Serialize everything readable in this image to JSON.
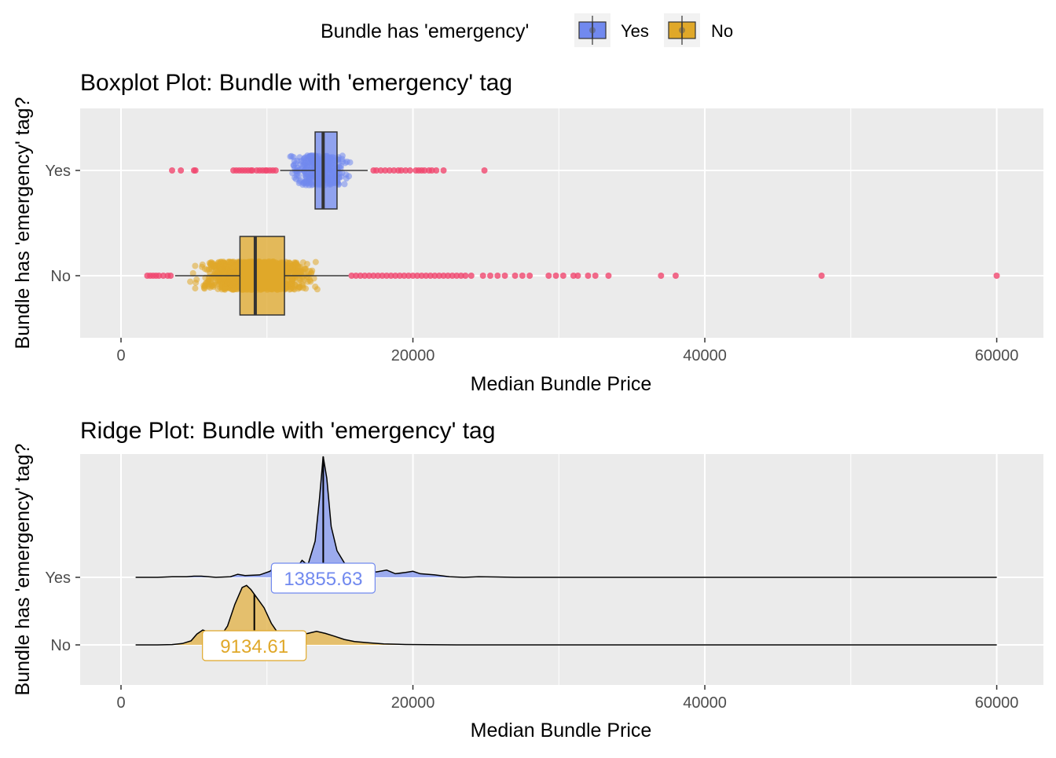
{
  "legend": {
    "title": "Bundle has 'emergency'",
    "items": [
      {
        "label": "Yes",
        "color": "#7189ef"
      },
      {
        "label": "No",
        "color": "#e0a829"
      }
    ]
  },
  "colors": {
    "panel_bg": "#ebebeb",
    "grid": "#ffffff",
    "yes_fill": "#7189ef",
    "no_fill": "#e0a829",
    "outlier": "#f0466e",
    "text_dark": "#000000",
    "tick_text": "#4d4d4d"
  },
  "chart_data": [
    {
      "type": "boxplot",
      "title": "Boxplot Plot: Bundle with 'emergency' tag",
      "xlabel": "Median Bundle Price",
      "ylabel": "Bundle has 'emergency' tag?",
      "xlim": [
        -2800,
        63200
      ],
      "xticks": [
        0,
        20000,
        40000,
        60000
      ],
      "xticklabels": [
        "0",
        "20000",
        "40000",
        "60000"
      ],
      "categories": [
        "Yes",
        "No"
      ],
      "grid": true,
      "series": [
        {
          "name": "Yes",
          "whisker_low": 10900,
          "q1": 13300,
          "median": 13850,
          "q3": 14800,
          "whisker_high": 16900,
          "jitter_range": [
            11200,
            16200
          ],
          "outliers": [
            3500,
            4100,
            5000,
            5100,
            7700,
            7900,
            8100,
            8300,
            8500,
            8700,
            8900,
            9000,
            9300,
            9500,
            9700,
            9900,
            10000,
            10200,
            10400,
            10600,
            17300,
            17500,
            17800,
            18100,
            18400,
            18700,
            19000,
            19200,
            19500,
            19800,
            20200,
            20400,
            20600,
            20800,
            21100,
            21300,
            21600,
            22100,
            24900
          ]
        },
        {
          "name": "No",
          "whisker_low": 3700,
          "q1": 8150,
          "median": 9200,
          "q3": 11200,
          "whisker_high": 15600,
          "jitter_range": [
            4500,
            14000
          ],
          "outliers": [
            1800,
            2000,
            2200,
            2400,
            2600,
            2900,
            3200,
            3400,
            15800,
            16100,
            16400,
            16700,
            17000,
            17300,
            17600,
            17900,
            18200,
            18500,
            18800,
            19100,
            19400,
            19700,
            20000,
            20300,
            20600,
            20900,
            21200,
            21500,
            21800,
            22100,
            22400,
            22700,
            23000,
            23300,
            23600,
            24000,
            24800,
            25300,
            25800,
            26300,
            27000,
            27500,
            28000,
            29300,
            29800,
            30300,
            31000,
            31300,
            32000,
            32500,
            33400,
            37000,
            38000,
            48000,
            60000
          ]
        }
      ]
    },
    {
      "type": "ridgeline",
      "title": "Ridge Plot: Bundle with 'emergency' tag",
      "xlabel": "Median Bundle Price",
      "ylabel": "Bundle has 'emergency' tag?",
      "xlim": [
        -2800,
        63200
      ],
      "xticks": [
        0,
        20000,
        40000,
        60000
      ],
      "xticklabels": [
        "0",
        "20000",
        "40000",
        "60000"
      ],
      "categories": [
        "Yes",
        "No"
      ],
      "grid": true,
      "range": [
        1000,
        60000
      ],
      "series": [
        {
          "name": "Yes",
          "median": 13855.63,
          "median_label": "13855.63",
          "density": [
            [
              1000,
              0
            ],
            [
              2500,
              0
            ],
            [
              3500,
              0.005
            ],
            [
              4500,
              0.005
            ],
            [
              5000,
              0.01
            ],
            [
              5500,
              0.01
            ],
            [
              6500,
              0
            ],
            [
              7500,
              0.005
            ],
            [
              8000,
              0.025
            ],
            [
              8500,
              0.015
            ],
            [
              9500,
              0.02
            ],
            [
              10200,
              0.05
            ],
            [
              10500,
              0.08
            ],
            [
              11000,
              0.04
            ],
            [
              11600,
              0.03
            ],
            [
              12000,
              0.07
            ],
            [
              12400,
              0.14
            ],
            [
              12800,
              0.1
            ],
            [
              13300,
              0.3
            ],
            [
              13600,
              0.65
            ],
            [
              13850,
              1.0
            ],
            [
              14100,
              0.82
            ],
            [
              14400,
              0.42
            ],
            [
              14800,
              0.22
            ],
            [
              15300,
              0.12
            ],
            [
              15800,
              0.06
            ],
            [
              16500,
              0.04
            ],
            [
              17000,
              0.05
            ],
            [
              17500,
              0.045
            ],
            [
              18200,
              0.06
            ],
            [
              18800,
              0.03
            ],
            [
              19500,
              0.04
            ],
            [
              20000,
              0.05
            ],
            [
              20500,
              0.03
            ],
            [
              21500,
              0.02
            ],
            [
              22500,
              0.005
            ],
            [
              23500,
              0
            ],
            [
              24500,
              0.005
            ],
            [
              25500,
              0.003
            ],
            [
              27000,
              0
            ],
            [
              60000,
              0
            ]
          ]
        },
        {
          "name": "No",
          "median": 9134.61,
          "median_label": "9134.61",
          "density": [
            [
              1000,
              0
            ],
            [
              2500,
              0
            ],
            [
              3500,
              0.005
            ],
            [
              4200,
              0.02
            ],
            [
              4800,
              0.06
            ],
            [
              5200,
              0.16
            ],
            [
              5600,
              0.22
            ],
            [
              6000,
              0.19
            ],
            [
              6400,
              0.09
            ],
            [
              6800,
              0.12
            ],
            [
              7300,
              0.28
            ],
            [
              7800,
              0.6
            ],
            [
              8300,
              0.85
            ],
            [
              8600,
              0.88
            ],
            [
              8900,
              0.82
            ],
            [
              9300,
              0.7
            ],
            [
              9800,
              0.55
            ],
            [
              10300,
              0.32
            ],
            [
              10800,
              0.16
            ],
            [
              11300,
              0.12
            ],
            [
              11800,
              0.13
            ],
            [
              12300,
              0.15
            ],
            [
              12800,
              0.17
            ],
            [
              13400,
              0.2
            ],
            [
              14000,
              0.17
            ],
            [
              14600,
              0.13
            ],
            [
              15300,
              0.08
            ],
            [
              16000,
              0.05
            ],
            [
              17000,
              0.03
            ],
            [
              18000,
              0.015
            ],
            [
              19500,
              0.006
            ],
            [
              21000,
              0.002
            ],
            [
              23000,
              0
            ],
            [
              60000,
              0
            ]
          ]
        }
      ]
    }
  ]
}
